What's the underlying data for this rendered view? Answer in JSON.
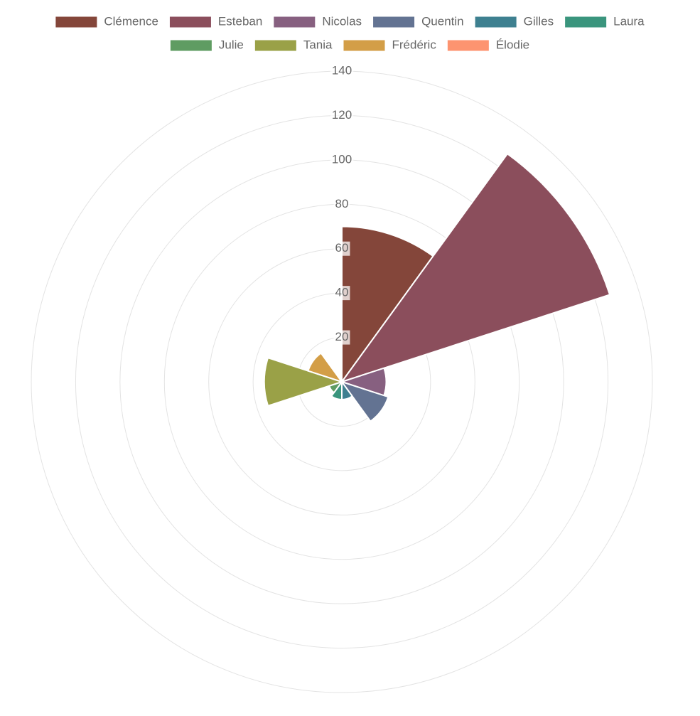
{
  "chart_data": {
    "type": "polarArea",
    "categories": [
      "Clémence",
      "Esteban",
      "Nicolas",
      "Quentin",
      "Gilles",
      "Laura",
      "Julie",
      "Tania",
      "Frédéric",
      "Élodie"
    ],
    "values": [
      70,
      127,
      20,
      22,
      8,
      8,
      6,
      35,
      16,
      0
    ],
    "colors": [
      "#84463a",
      "#8b4e5c",
      "#876080",
      "#637392",
      "#3e8090",
      "#3a957d",
      "#5f9c62",
      "#9aa147",
      "#d39e47",
      "#fd9470"
    ],
    "rlim": [
      0,
      140
    ],
    "rticks": [
      20,
      40,
      60,
      80,
      100,
      120,
      140
    ],
    "grid": true,
    "legend": "top"
  }
}
